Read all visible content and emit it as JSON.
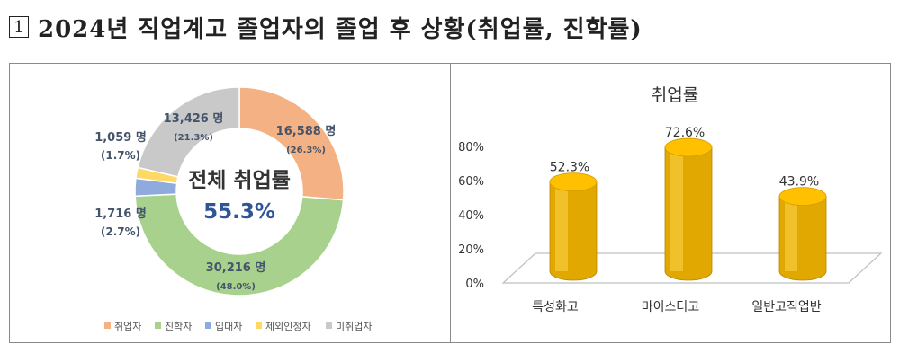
{
  "page_title": {
    "number": "1",
    "text": "2024년 직업계고 졸업자의 졸업 후 상황(취업률, 진학률)"
  },
  "chart_data": [
    {
      "type": "pie",
      "center_label": "전체 취업률",
      "center_value": "55.3%",
      "unit": "명",
      "slices": [
        {
          "name": "취업자",
          "count": "16,588",
          "value": 16588,
          "pct": "(26.3%)",
          "color": "#F4B183"
        },
        {
          "name": "진학자",
          "count": "30,216",
          "value": 30216,
          "pct": "(48.0%)",
          "color": "#A9D18E"
        },
        {
          "name": "입대자",
          "count": "1,716",
          "value": 1716,
          "pct": "(2.7%)",
          "color": "#8FAADC"
        },
        {
          "name": "제외인정자",
          "count": "1,059",
          "value": 1059,
          "pct": "(1.7%)",
          "color": "#FFD966"
        },
        {
          "name": "미취업자",
          "count": "13,426",
          "value": 13426,
          "pct": "(21.3%)",
          "color": "#C9C9C9"
        }
      ]
    },
    {
      "type": "bar",
      "title": "취업률",
      "categories": [
        "특성화고",
        "마이스터고",
        "일반고직업반"
      ],
      "values": [
        52.3,
        72.6,
        43.9
      ],
      "value_labels": [
        "52.3%",
        "72.6%",
        "43.9%"
      ],
      "yticks": [
        "0%",
        "20%",
        "40%",
        "60%",
        "80%"
      ],
      "ylim": [
        0,
        80
      ],
      "color": "#FFC000"
    }
  ]
}
